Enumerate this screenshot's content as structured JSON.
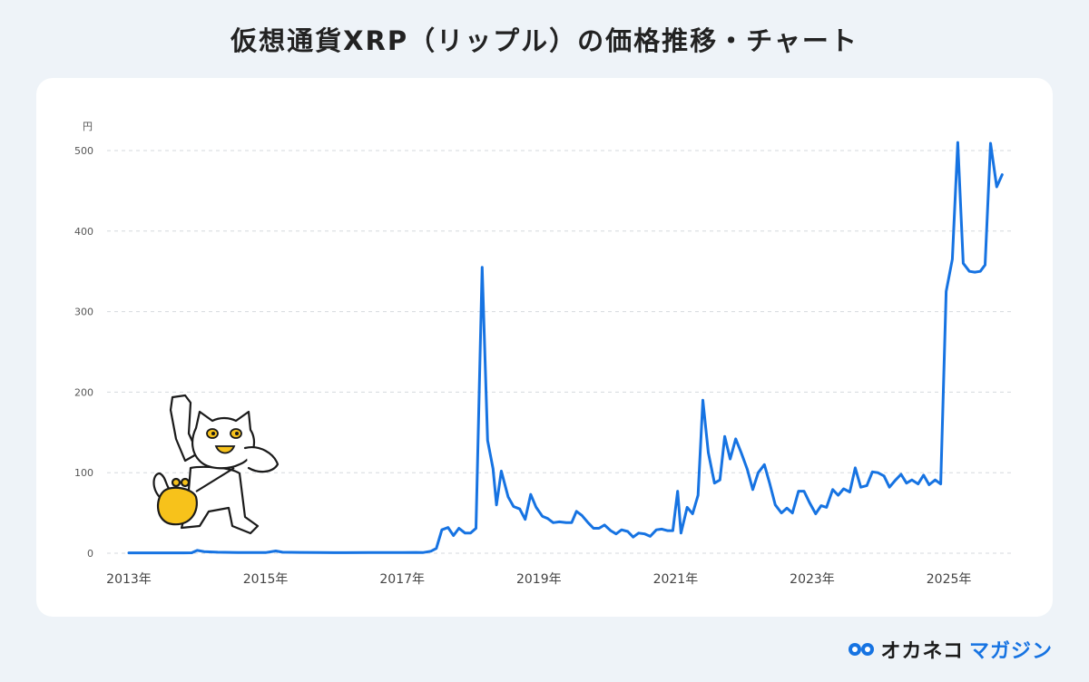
{
  "page": {
    "title": "仮想通貨XRP（リップル）の価格推移・チャート"
  },
  "logo": {
    "name_part1": "オカネコ",
    "name_part2": "マガジン"
  },
  "mascot": {
    "icon": "cat-with-coin-purse-icon"
  },
  "colors": {
    "line": "#1673e2",
    "grid": "#d5d9de",
    "background": "#eef3f8",
    "card": "#ffffff"
  },
  "chart_data": {
    "type": "line",
    "title": "仮想通貨XRP（リップル）の価格推移・チャート",
    "ylabel": "円",
    "xlabel": "",
    "ylim": [
      0,
      500
    ],
    "yticks": [
      0,
      100,
      200,
      300,
      400,
      500
    ],
    "xlim": [
      2013.0,
      2025.8
    ],
    "xticks": [
      {
        "x": 2013,
        "label": "2013年"
      },
      {
        "x": 2015,
        "label": "2015年"
      },
      {
        "x": 2017,
        "label": "2017年"
      },
      {
        "x": 2019,
        "label": "2019年"
      },
      {
        "x": 2021,
        "label": "2021年"
      },
      {
        "x": 2023,
        "label": "2023年"
      },
      {
        "x": 2025,
        "label": "2025年"
      }
    ],
    "grid": true,
    "series": [
      {
        "points": [
          [
            2013.0,
            0.5
          ],
          [
            2013.5,
            0.5
          ],
          [
            2013.8,
            0.5
          ],
          [
            2013.92,
            0.6
          ],
          [
            2014.0,
            3.5
          ],
          [
            2014.1,
            2
          ],
          [
            2014.3,
            1.2
          ],
          [
            2014.6,
            0.8
          ],
          [
            2014.9,
            0.8
          ],
          [
            2015.0,
            0.8
          ],
          [
            2015.15,
            2.8
          ],
          [
            2015.25,
            1.2
          ],
          [
            2015.5,
            1
          ],
          [
            2015.8,
            0.9
          ],
          [
            2016.0,
            0.7
          ],
          [
            2016.5,
            0.8
          ],
          [
            2016.9,
            0.8
          ],
          [
            2017.0,
            0.8
          ],
          [
            2017.2,
            1
          ],
          [
            2017.3,
            0.8
          ],
          [
            2017.42,
            2.5
          ],
          [
            2017.5,
            6
          ],
          [
            2017.58,
            29
          ],
          [
            2017.67,
            32
          ],
          [
            2017.75,
            22
          ],
          [
            2017.83,
            31
          ],
          [
            2017.92,
            25
          ],
          [
            2018.0,
            25
          ],
          [
            2018.08,
            31
          ],
          [
            2018.17,
            355
          ],
          [
            2018.25,
            140
          ],
          [
            2018.33,
            105
          ],
          [
            2018.38,
            60
          ],
          [
            2018.45,
            102
          ],
          [
            2018.55,
            70
          ],
          [
            2018.63,
            58
          ],
          [
            2018.72,
            55
          ],
          [
            2018.8,
            42
          ],
          [
            2018.88,
            73
          ],
          [
            2018.96,
            57
          ],
          [
            2019.05,
            46
          ],
          [
            2019.13,
            43
          ],
          [
            2019.21,
            38
          ],
          [
            2019.3,
            39
          ],
          [
            2019.4,
            38
          ],
          [
            2019.48,
            38
          ],
          [
            2019.55,
            52
          ],
          [
            2019.63,
            47
          ],
          [
            2019.72,
            38
          ],
          [
            2019.8,
            31
          ],
          [
            2019.88,
            31
          ],
          [
            2019.96,
            35
          ],
          [
            2020.05,
            28
          ],
          [
            2020.13,
            24
          ],
          [
            2020.21,
            29
          ],
          [
            2020.3,
            27
          ],
          [
            2020.38,
            20
          ],
          [
            2020.46,
            25
          ],
          [
            2020.55,
            24
          ],
          [
            2020.63,
            21
          ],
          [
            2020.72,
            29
          ],
          [
            2020.8,
            30
          ],
          [
            2020.88,
            28
          ],
          [
            2020.96,
            28
          ],
          [
            2021.03,
            77
          ],
          [
            2021.08,
            25
          ],
          [
            2021.17,
            57
          ],
          [
            2021.25,
            49
          ],
          [
            2021.33,
            72
          ],
          [
            2021.4,
            190
          ],
          [
            2021.48,
            125
          ],
          [
            2021.57,
            87
          ],
          [
            2021.65,
            91
          ],
          [
            2021.72,
            145
          ],
          [
            2021.8,
            117
          ],
          [
            2021.88,
            142
          ],
          [
            2021.96,
            125
          ],
          [
            2022.05,
            104
          ],
          [
            2022.13,
            79
          ],
          [
            2022.21,
            100
          ],
          [
            2022.3,
            110
          ],
          [
            2022.38,
            86
          ],
          [
            2022.46,
            60
          ],
          [
            2022.55,
            50
          ],
          [
            2022.63,
            56
          ],
          [
            2022.71,
            50
          ],
          [
            2022.8,
            77
          ],
          [
            2022.88,
            77
          ],
          [
            2022.96,
            63
          ],
          [
            2023.05,
            49
          ],
          [
            2023.13,
            59
          ],
          [
            2023.21,
            57
          ],
          [
            2023.3,
            79
          ],
          [
            2023.38,
            72
          ],
          [
            2023.46,
            80
          ],
          [
            2023.55,
            76
          ],
          [
            2023.63,
            106
          ],
          [
            2023.71,
            82
          ],
          [
            2023.8,
            84
          ],
          [
            2023.88,
            101
          ],
          [
            2023.96,
            100
          ],
          [
            2024.05,
            96
          ],
          [
            2024.13,
            82
          ],
          [
            2024.21,
            90
          ],
          [
            2024.3,
            98
          ],
          [
            2024.38,
            87
          ],
          [
            2024.46,
            91
          ],
          [
            2024.55,
            86
          ],
          [
            2024.63,
            97
          ],
          [
            2024.71,
            85
          ],
          [
            2024.8,
            91
          ],
          [
            2024.88,
            86
          ],
          [
            2024.96,
            325
          ],
          [
            2025.05,
            365
          ],
          [
            2025.13,
            510
          ],
          [
            2025.21,
            360
          ],
          [
            2025.3,
            350
          ],
          [
            2025.38,
            349
          ],
          [
            2025.46,
            350
          ],
          [
            2025.53,
            358
          ],
          [
            2025.61,
            509
          ],
          [
            2025.7,
            455
          ],
          [
            2025.78,
            470
          ]
        ]
      }
    ]
  }
}
